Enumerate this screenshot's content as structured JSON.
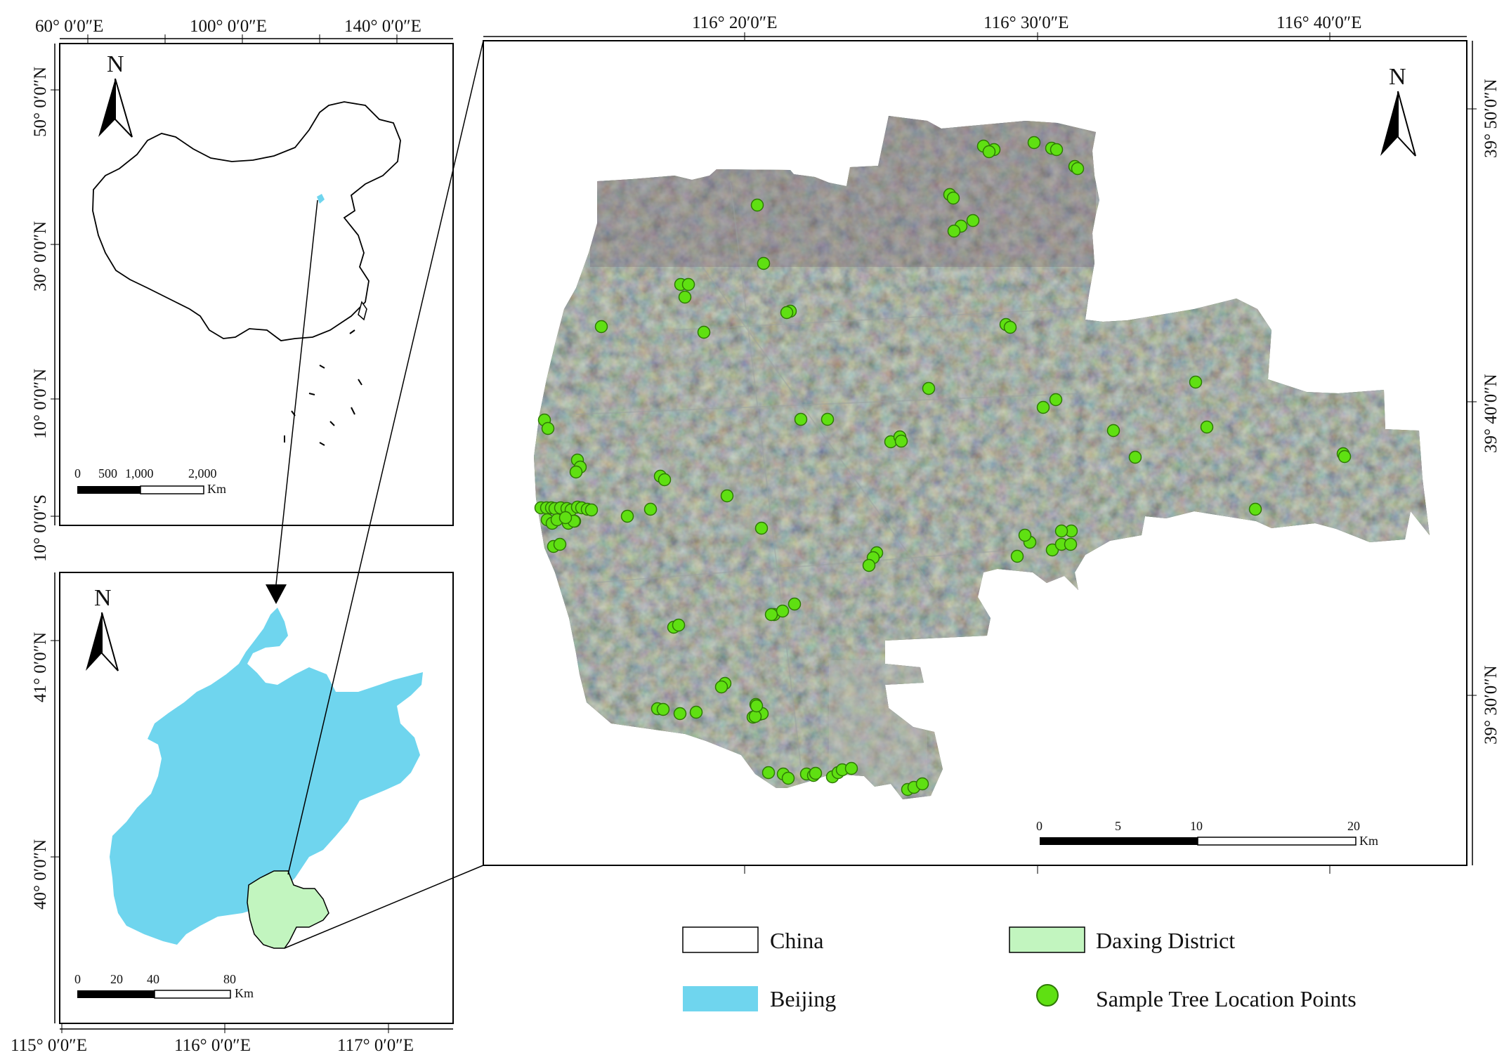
{
  "colors": {
    "beijing": "#6fd5ee",
    "daxing": "#c2f5bf",
    "sample_point": "#5fe012",
    "sample_point_stroke": "#2f7a06",
    "frame": "#000000",
    "satellite_base": "#3b4a35"
  },
  "panels": {
    "china": {
      "north": "N",
      "top_ticks": [
        "60°  0′0″E",
        "100°  0′0″E",
        "140°  0′0″E"
      ],
      "left_ticks": [
        "50°  0′0″N",
        "30°  0′0″N",
        "10°  0′0″N",
        "10°  0′0″S"
      ],
      "scale_labels": [
        "0",
        "500",
        "1,000",
        "2,000"
      ],
      "scale_unit": "Km"
    },
    "beijing": {
      "north": "N",
      "bottom_ticks": [
        "115°  0′0″E",
        "116°  0′0″E",
        "117°  0′0″E"
      ],
      "left_ticks": [
        "41°  0′0″N",
        "40°  0′0″N"
      ],
      "scale_labels": [
        "0",
        "20",
        "40",
        "80"
      ],
      "scale_unit": "Km"
    },
    "daxing": {
      "north": "N",
      "top_ticks": [
        "116°  20′0″E",
        "116°  30′0″E",
        "116°  40′0″E"
      ],
      "right_ticks": [
        "39°  50′0″N",
        "39°  40′0″N",
        "39°  30′0″N"
      ],
      "scale_labels": [
        "0",
        "5",
        "10",
        "20"
      ],
      "scale_unit": "Km"
    }
  },
  "legend": {
    "china": "China",
    "daxing": "Daxing District",
    "beijing": "Beijing",
    "sample": "Sample Tree Location Points"
  },
  "sample_points": [
    [
      1078,
      292
    ],
    [
      1087,
      375
    ],
    [
      969,
      405
    ],
    [
      980,
      405
    ],
    [
      975,
      423
    ],
    [
      1125,
      443
    ],
    [
      1120,
      445
    ],
    [
      856,
      465
    ],
    [
      1002,
      473
    ],
    [
      1400,
      208
    ],
    [
      1415,
      213
    ],
    [
      1408,
      216
    ],
    [
      1472,
      203
    ],
    [
      1497,
      211
    ],
    [
      1504,
      213
    ],
    [
      1530,
      237
    ],
    [
      1534,
      240
    ],
    [
      1352,
      277
    ],
    [
      1357,
      282
    ],
    [
      1385,
      314
    ],
    [
      1368,
      322
    ],
    [
      1358,
      329
    ],
    [
      1432,
      462
    ],
    [
      1438,
      466
    ],
    [
      1322,
      553
    ],
    [
      1140,
      597
    ],
    [
      1178,
      597
    ],
    [
      1268,
      629
    ],
    [
      1281,
      622
    ],
    [
      1283,
      628
    ],
    [
      1503,
      569
    ],
    [
      1485,
      580
    ],
    [
      1585,
      613
    ],
    [
      1702,
      544
    ],
    [
      1718,
      608
    ],
    [
      1616,
      651
    ],
    [
      1912,
      646
    ],
    [
      1914,
      650
    ],
    [
      1787,
      725
    ],
    [
      775,
      598
    ],
    [
      780,
      610
    ],
    [
      822,
      655
    ],
    [
      826,
      665
    ],
    [
      820,
      672
    ],
    [
      940,
      678
    ],
    [
      946,
      683
    ],
    [
      1035,
      706
    ],
    [
      1084,
      752
    ],
    [
      770,
      723
    ],
    [
      778,
      723
    ],
    [
      785,
      723
    ],
    [
      790,
      724
    ],
    [
      798,
      723
    ],
    [
      807,
      724
    ],
    [
      813,
      726
    ],
    [
      822,
      722
    ],
    [
      828,
      723
    ],
    [
      836,
      725
    ],
    [
      842,
      726
    ],
    [
      779,
      740
    ],
    [
      786,
      745
    ],
    [
      793,
      740
    ],
    [
      809,
      745
    ],
    [
      818,
      742
    ],
    [
      893,
      735
    ],
    [
      926,
      725
    ],
    [
      817,
      742
    ],
    [
      805,
      737
    ],
    [
      788,
      778
    ],
    [
      797,
      775
    ],
    [
      1248,
      787
    ],
    [
      1243,
      794
    ],
    [
      1237,
      805
    ],
    [
      1131,
      860
    ],
    [
      1102,
      875
    ],
    [
      1114,
      870
    ],
    [
      1098,
      875
    ],
    [
      959,
      893
    ],
    [
      966,
      890
    ],
    [
      1032,
      973
    ],
    [
      1027,
      978
    ],
    [
      1081,
      1017
    ],
    [
      1085,
      1016
    ],
    [
      1072,
      1021
    ],
    [
      1075,
      1020
    ],
    [
      936,
      1009
    ],
    [
      944,
      1010
    ],
    [
      968,
      1016
    ],
    [
      991,
      1014
    ],
    [
      1076,
      1003
    ],
    [
      1077,
      1005
    ],
    [
      1094,
      1100
    ],
    [
      1115,
      1102
    ],
    [
      1122,
      1108
    ],
    [
      1148,
      1102
    ],
    [
      1158,
      1104
    ],
    [
      1161,
      1101
    ],
    [
      1185,
      1106
    ],
    [
      1193,
      1100
    ],
    [
      1199,
      1096
    ],
    [
      1212,
      1094
    ],
    [
      1292,
      1124
    ],
    [
      1301,
      1121
    ],
    [
      1313,
      1116
    ],
    [
      1448,
      792
    ],
    [
      1466,
      772
    ],
    [
      1498,
      783
    ],
    [
      1511,
      775
    ],
    [
      1524,
      775
    ],
    [
      1525,
      756
    ],
    [
      1511,
      756
    ],
    [
      1459,
      762
    ]
  ]
}
